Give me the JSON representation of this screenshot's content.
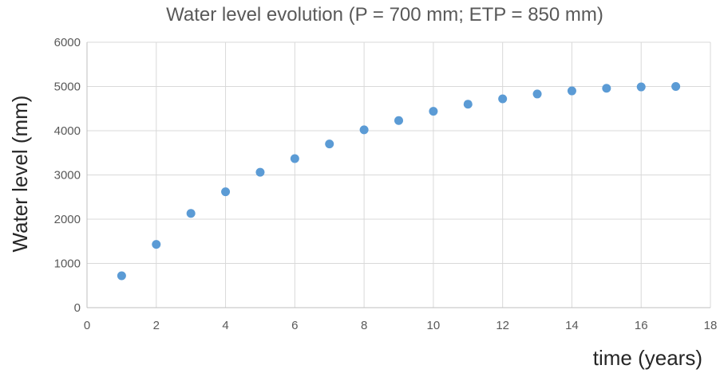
{
  "chart_data": {
    "type": "scatter",
    "title": "Water level evolution (P = 700 mm; ETP = 850 mm)",
    "xlabel": "time (years)",
    "ylabel": "Water level (mm)",
    "xlim": [
      0,
      18
    ],
    "ylim": [
      0,
      6000
    ],
    "xticks": [
      0,
      2,
      4,
      6,
      8,
      10,
      12,
      14,
      16,
      18
    ],
    "yticks": [
      0,
      1000,
      2000,
      3000,
      4000,
      5000,
      6000
    ],
    "grid": true,
    "marker_color": "#5B9BD5",
    "x": [
      1,
      2,
      3,
      4,
      5,
      6,
      7,
      8,
      9,
      10,
      11,
      12,
      13,
      14,
      15,
      16,
      17
    ],
    "y": [
      720,
      1430,
      2130,
      2620,
      3060,
      3370,
      3700,
      4020,
      4230,
      4440,
      4600,
      4720,
      4830,
      4900,
      4960,
      4990,
      5000
    ]
  }
}
